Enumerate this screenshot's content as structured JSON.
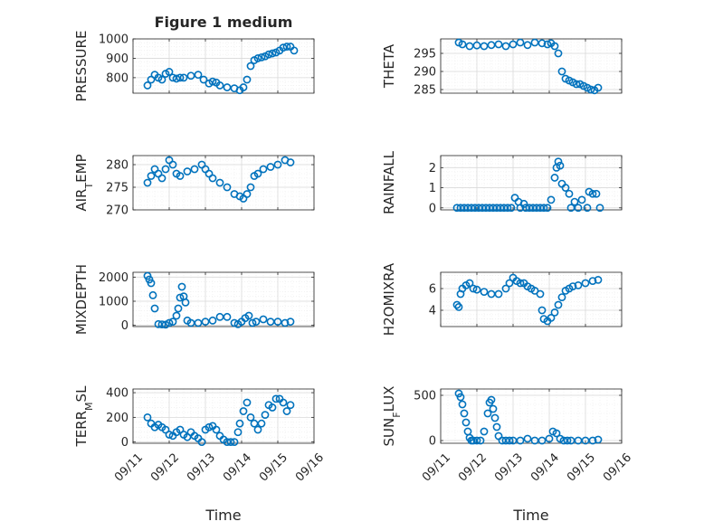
{
  "chart_data": [
    {
      "type": "scatter",
      "title": "Figure 1 medium",
      "ylabel": "PRESSURE",
      "ylim": [
        720,
        1000
      ],
      "yticks": [
        800,
        900,
        1000
      ],
      "xlim": [
        "09/11",
        "09/16"
      ],
      "xticks": [
        "09/11",
        "09/12",
        "09/13",
        "09/14",
        "09/15",
        "09/16"
      ],
      "show_xticklabels": false,
      "series": [
        {
          "x": [
            11.4,
            11.5,
            11.6,
            11.7,
            11.8,
            11.9,
            12.0,
            12.1,
            12.2,
            12.3,
            12.4,
            12.6,
            12.8,
            12.95,
            13.1,
            13.2,
            13.3,
            13.4,
            13.6,
            13.8,
            13.95,
            14.05,
            14.15,
            14.25,
            14.35,
            14.45,
            14.55,
            14.65,
            14.75,
            14.85,
            14.95,
            15.05,
            15.15,
            15.25,
            15.35,
            15.45
          ],
          "y": [
            760,
            790,
            815,
            800,
            790,
            820,
            830,
            800,
            795,
            800,
            800,
            810,
            815,
            790,
            770,
            780,
            775,
            760,
            750,
            745,
            735,
            750,
            790,
            860,
            890,
            900,
            905,
            910,
            920,
            925,
            930,
            940,
            955,
            960,
            960,
            940
          ]
        }
      ]
    },
    {
      "type": "scatter",
      "ylabel": "THETA",
      "ylim": [
        284,
        299
      ],
      "yticks": [
        285,
        290,
        295
      ],
      "xlim": [
        "09/11",
        "09/16"
      ],
      "xticks": [
        "09/11",
        "09/12",
        "09/13",
        "09/14",
        "09/15",
        "09/16"
      ],
      "show_xticklabels": false,
      "series": [
        {
          "x": [
            11.5,
            11.6,
            11.8,
            12.0,
            12.2,
            12.4,
            12.6,
            12.8,
            13.0,
            13.2,
            13.4,
            13.6,
            13.8,
            13.95,
            14.05,
            14.15,
            14.25,
            14.35,
            14.45,
            14.55,
            14.65,
            14.75,
            14.85,
            14.95,
            15.05,
            15.15,
            15.25,
            15.35
          ],
          "y": [
            298,
            297.5,
            297,
            297.2,
            297,
            297.3,
            297.5,
            297,
            297.5,
            298,
            297.3,
            298,
            297.8,
            297.5,
            297.8,
            297,
            295,
            290,
            288,
            287.5,
            287,
            286.5,
            286.5,
            286,
            285.5,
            285,
            284.8,
            285.5
          ]
        }
      ]
    },
    {
      "type": "scatter",
      "ylabel": "AIR_TEMP",
      "ylim": [
        270,
        282
      ],
      "yticks": [
        270,
        275,
        280
      ],
      "xlim": [
        "09/11",
        "09/16"
      ],
      "xticks": [
        "09/11",
        "09/12",
        "09/13",
        "09/14",
        "09/15",
        "09/16"
      ],
      "show_xticklabels": false,
      "series": [
        {
          "x": [
            11.4,
            11.5,
            11.6,
            11.7,
            11.8,
            11.9,
            12.0,
            12.1,
            12.2,
            12.3,
            12.5,
            12.7,
            12.9,
            13.0,
            13.1,
            13.2,
            13.4,
            13.6,
            13.8,
            13.95,
            14.05,
            14.15,
            14.25,
            14.35,
            14.45,
            14.6,
            14.8,
            15.0,
            15.2,
            15.35
          ],
          "y": [
            276,
            277.5,
            279,
            278,
            277,
            279,
            281,
            280,
            278,
            277.5,
            278.5,
            279,
            280,
            279,
            278,
            277,
            276,
            275,
            273.5,
            273,
            272.5,
            273.5,
            275,
            277.5,
            278,
            279,
            279.5,
            280,
            281,
            280.5
          ]
        }
      ]
    },
    {
      "type": "scatter",
      "ylabel": "RAINFALL",
      "ylim": [
        -0.1,
        2.6
      ],
      "yticks": [
        0,
        1,
        2
      ],
      "xlim": [
        "09/11",
        "09/16"
      ],
      "xticks": [
        "09/11",
        "09/12",
        "09/13",
        "09/14",
        "09/15",
        "09/16"
      ],
      "show_xticklabels": false,
      "series": [
        {
          "x": [
            11.45,
            11.55,
            11.65,
            11.75,
            11.85,
            11.95,
            12.05,
            12.15,
            12.25,
            12.35,
            12.45,
            12.55,
            12.65,
            12.75,
            12.85,
            12.95,
            13.05,
            13.15,
            13.2,
            13.3,
            13.35,
            13.45,
            13.55,
            13.65,
            13.75,
            13.85,
            13.95,
            14.05,
            14.15,
            14.2,
            14.25,
            14.3,
            14.35,
            14.45,
            14.55,
            14.6,
            14.7,
            14.8,
            14.9,
            15.05,
            15.1,
            15.2,
            15.3,
            15.4
          ],
          "y": [
            0,
            0,
            0,
            0,
            0,
            0,
            0,
            0,
            0,
            0,
            0,
            0,
            0,
            0,
            0,
            0,
            0.5,
            0.3,
            0,
            0.2,
            0,
            0,
            0,
            0,
            0,
            0,
            0,
            0.4,
            1.5,
            2.0,
            2.3,
            2.1,
            1.2,
            1.0,
            0.7,
            0,
            0.3,
            0,
            0.4,
            0,
            0.8,
            0.7,
            0.7,
            0
          ]
        }
      ]
    },
    {
      "type": "scatter",
      "ylabel": "MIXDEPTH",
      "ylim": [
        -50,
        2200
      ],
      "yticks": [
        0,
        1000,
        2000
      ],
      "xlim": [
        "09/11",
        "09/16"
      ],
      "xticks": [
        "09/11",
        "09/12",
        "09/13",
        "09/14",
        "09/15",
        "09/16"
      ],
      "show_xticklabels": false,
      "series": [
        {
          "x": [
            11.4,
            11.45,
            11.5,
            11.55,
            11.6,
            11.7,
            11.8,
            11.9,
            12.0,
            12.1,
            12.2,
            12.25,
            12.3,
            12.35,
            12.4,
            12.45,
            12.5,
            12.6,
            12.8,
            13.0,
            13.2,
            13.4,
            13.6,
            13.8,
            13.9,
            14.0,
            14.1,
            14.2,
            14.3,
            14.4,
            14.6,
            14.8,
            15.0,
            15.2,
            15.35
          ],
          "y": [
            2050,
            1900,
            1750,
            1250,
            700,
            50,
            40,
            30,
            100,
            150,
            400,
            700,
            1150,
            1600,
            1200,
            950,
            200,
            100,
            100,
            150,
            200,
            350,
            350,
            100,
            50,
            150,
            300,
            400,
            100,
            150,
            250,
            150,
            150,
            100,
            150
          ]
        }
      ]
    },
    {
      "type": "scatter",
      "ylabel": "H2OMIXRA",
      "ylim": [
        2.5,
        7.5
      ],
      "yticks": [
        4,
        6
      ],
      "xlim": [
        "09/11",
        "09/16"
      ],
      "xticks": [
        "09/11",
        "09/12",
        "09/13",
        "09/14",
        "09/15",
        "09/16"
      ],
      "show_xticklabels": false,
      "series": [
        {
          "x": [
            11.45,
            11.5,
            11.55,
            11.6,
            11.7,
            11.8,
            11.9,
            12.0,
            12.2,
            12.4,
            12.6,
            12.8,
            12.9,
            13.0,
            13.1,
            13.2,
            13.3,
            13.4,
            13.5,
            13.6,
            13.75,
            13.8,
            13.85,
            13.95,
            14.05,
            14.15,
            14.25,
            14.35,
            14.45,
            14.55,
            14.65,
            14.8,
            15.0,
            15.2,
            15.35
          ],
          "y": [
            4.5,
            4.3,
            5.5,
            6.0,
            6.3,
            6.5,
            6.0,
            5.9,
            5.7,
            5.5,
            5.5,
            6.0,
            6.5,
            7.0,
            6.7,
            6.5,
            6.5,
            6.2,
            6.0,
            5.8,
            5.5,
            4.0,
            3.2,
            3.0,
            3.3,
            3.8,
            4.5,
            5.2,
            5.8,
            6.0,
            6.2,
            6.3,
            6.5,
            6.7,
            6.8
          ]
        }
      ]
    },
    {
      "type": "scatter",
      "ylabel": "TERR_MSL",
      "ylim": [
        -10,
        430
      ],
      "yticks": [
        0,
        200,
        400
      ],
      "xlim": [
        "09/11",
        "09/16"
      ],
      "xticks": [
        "09/11",
        "09/12",
        "09/13",
        "09/14",
        "09/15",
        "09/16"
      ],
      "show_xticklabels": true,
      "series": [
        {
          "x": [
            11.4,
            11.5,
            11.6,
            11.7,
            11.8,
            11.9,
            12.0,
            12.1,
            12.2,
            12.3,
            12.4,
            12.5,
            12.6,
            12.7,
            12.8,
            12.9,
            13.0,
            13.1,
            13.2,
            13.3,
            13.4,
            13.5,
            13.6,
            13.7,
            13.8,
            13.9,
            13.95,
            14.05,
            14.15,
            14.25,
            14.35,
            14.45,
            14.55,
            14.65,
            14.75,
            14.85,
            14.95,
            15.05,
            15.15,
            15.25,
            15.35
          ],
          "y": [
            200,
            150,
            120,
            140,
            120,
            100,
            60,
            50,
            80,
            100,
            60,
            40,
            80,
            50,
            30,
            0,
            100,
            120,
            130,
            100,
            50,
            20,
            0,
            0,
            0,
            80,
            150,
            250,
            320,
            200,
            150,
            100,
            150,
            220,
            300,
            280,
            350,
            350,
            320,
            250,
            300
          ]
        }
      ]
    },
    {
      "type": "scatter",
      "ylabel": "SUN_FLUX",
      "ylim": [
        -30,
        570
      ],
      "yticks": [
        0,
        500
      ],
      "xlim": [
        "09/11",
        "09/16"
      ],
      "xticks": [
        "09/11",
        "09/12",
        "09/13",
        "09/14",
        "09/15",
        "09/16"
      ],
      "show_xticklabels": true,
      "series": [
        {
          "x": [
            11.5,
            11.55,
            11.6,
            11.65,
            11.7,
            11.75,
            11.8,
            11.85,
            11.9,
            12.0,
            12.1,
            12.2,
            12.3,
            12.35,
            12.4,
            12.45,
            12.5,
            12.55,
            12.6,
            12.7,
            12.8,
            12.9,
            13.0,
            13.2,
            13.4,
            13.6,
            13.8,
            14.0,
            14.1,
            14.2,
            14.3,
            14.4,
            14.5,
            14.6,
            14.8,
            15.0,
            15.2,
            15.35
          ],
          "y": [
            520,
            480,
            400,
            300,
            200,
            100,
            30,
            0,
            0,
            0,
            0,
            100,
            300,
            420,
            450,
            350,
            250,
            150,
            50,
            0,
            0,
            0,
            0,
            0,
            20,
            0,
            0,
            20,
            100,
            80,
            20,
            0,
            0,
            0,
            0,
            0,
            0,
            10
          ]
        }
      ]
    }
  ],
  "xlabel": "Time",
  "colors": {
    "marker": "#0072BD",
    "axes": "#262626",
    "grid": "#D9D9D9",
    "minor_grid": "#EBEBEB"
  }
}
